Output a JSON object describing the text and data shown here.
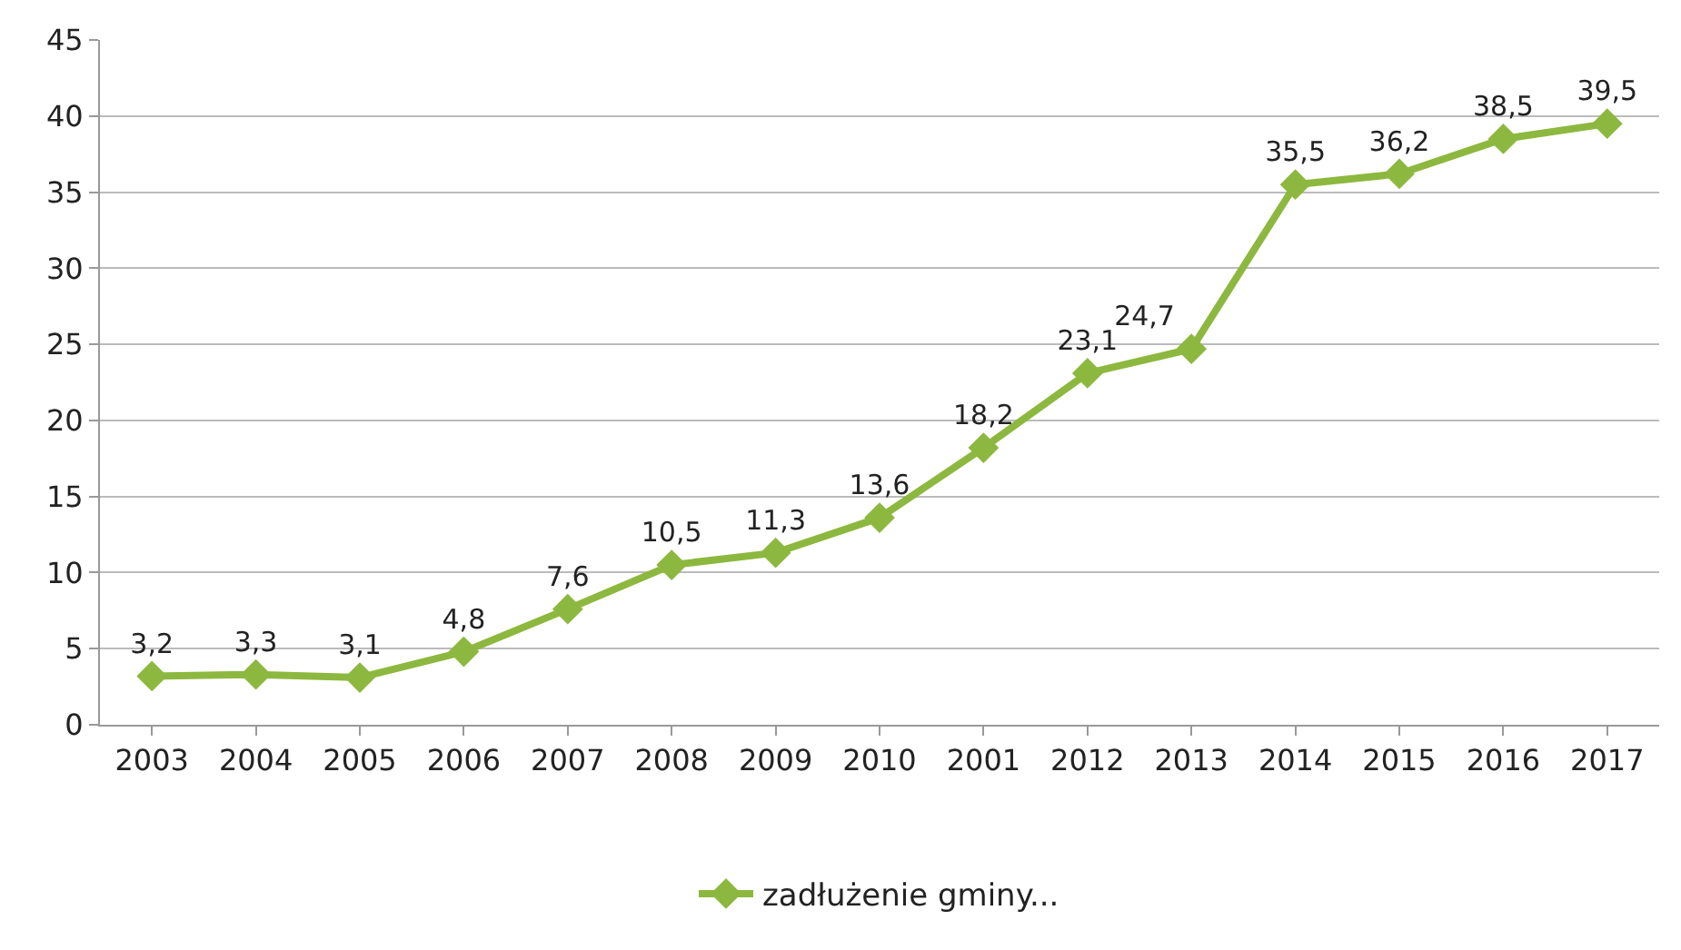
{
  "chart_data": {
    "type": "line",
    "categories": [
      "2003",
      "2004",
      "2005",
      "2006",
      "2007",
      "2008",
      "2009",
      "2010",
      "2001",
      "2012",
      "2013",
      "2014",
      "2015",
      "2016",
      "2017"
    ],
    "series": [
      {
        "name": "zadłużenie gminy...",
        "color": "#8db83f",
        "values": [
          3.2,
          3.3,
          3.1,
          4.8,
          7.6,
          10.5,
          11.3,
          13.6,
          18.2,
          23.1,
          24.7,
          35.5,
          36.2,
          38.5,
          39.5
        ],
        "value_labels": [
          "3,2",
          "3,3",
          "3,1",
          "4,8",
          "7,6",
          "10,5",
          "11,3",
          "13,6",
          "18,2",
          "23,1",
          "24,7",
          "35,5",
          "36,2",
          "38,5",
          "39,5"
        ]
      }
    ],
    "ylim": [
      0,
      45
    ],
    "yticks": [
      0,
      5,
      10,
      15,
      20,
      25,
      30,
      35,
      40,
      45
    ],
    "grid": "y",
    "legend": "bottom",
    "marker": "diamond",
    "line_style": "solid"
  }
}
